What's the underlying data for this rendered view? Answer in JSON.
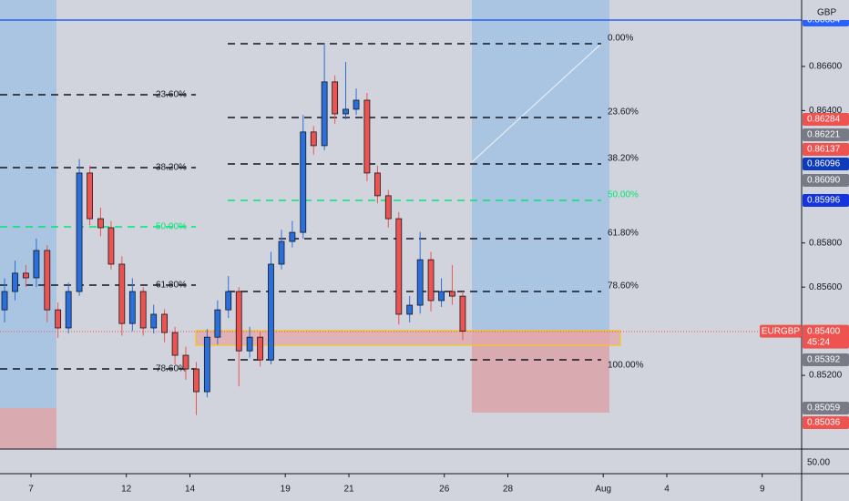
{
  "chart_data": {
    "type": "candlestick",
    "currency": "GBP",
    "symbol": "EURGBP",
    "last_price_label": "0.85400",
    "countdown": "45:24",
    "indicator_value": "50.00",
    "up_color": "#2a6fdb",
    "down_color": "#ef5350",
    "xlim": [
      -0.974,
      24.24
    ],
    "ylim": [
      0.84866,
      0.86901
    ],
    "xticks": [
      {
        "value": 0,
        "label": "7"
      },
      {
        "value": 3,
        "label": "12"
      },
      {
        "value": 5,
        "label": "14"
      },
      {
        "value": 8,
        "label": "19"
      },
      {
        "value": 10,
        "label": "21"
      },
      {
        "value": 13,
        "label": "26"
      },
      {
        "value": 15,
        "label": "28"
      },
      {
        "value": 18,
        "label": "Aug"
      },
      {
        "value": 20,
        "label": "4"
      },
      {
        "value": 23,
        "label": "9"
      }
    ],
    "yticks": [
      {
        "value": 0.866,
        "label": "0.86600"
      },
      {
        "value": 0.864,
        "label": "0.86400"
      },
      {
        "value": 0.858,
        "label": "0.85800"
      },
      {
        "value": 0.856,
        "label": "0.85600"
      },
      {
        "value": 0.852,
        "label": "0.85200"
      }
    ],
    "price_labels": [
      {
        "text": "0.86684",
        "color": "#2962ff"
      },
      {
        "text": "0.86284",
        "color": "#ef5350"
      },
      {
        "text": "0.86221",
        "color": "#787b86"
      },
      {
        "text": "0.86137",
        "color": "#ef5350"
      },
      {
        "text": "0.86096",
        "color": "#0d3bbd"
      },
      {
        "text": "0.86090",
        "color": "#787b86"
      },
      {
        "text": "0.85996",
        "color": "#1434e0"
      },
      {
        "text": "0.85392",
        "color": "#787b86"
      },
      {
        "text": "0.85059",
        "color": "#787b86"
      },
      {
        "text": "0.85036",
        "color": "#ef5350"
      }
    ],
    "fib_left": [
      "23.60%",
      "38.20%",
      "50.00%",
      "61.80%",
      "78.60%"
    ],
    "fib_right": [
      "0.00%",
      "23.60%",
      "38.20%",
      "50.00%",
      "61.80%",
      "78.60%",
      "100.00%"
    ],
    "x": [
      -0.83,
      -0.5,
      -0.16,
      0.17,
      0.51,
      0.85,
      1.18,
      1.52,
      1.85,
      2.19,
      2.52,
      2.86,
      3.19,
      3.53,
      3.86,
      4.2,
      4.53,
      4.87,
      5.2,
      5.54,
      5.87,
      6.21,
      6.54,
      6.88,
      7.21,
      7.55,
      7.88,
      8.22,
      8.56,
      8.89,
      9.23,
      9.56,
      9.9,
      10.23,
      10.57,
      10.9,
      11.24,
      11.57,
      11.91,
      12.24,
      12.58,
      12.91,
      13.25,
      13.58
    ],
    "open": [
      0.85497,
      0.8558,
      0.85663,
      0.85642,
      0.85766,
      0.85497,
      0.85415,
      0.8558,
      0.86117,
      0.8591,
      0.85869,
      0.85704,
      0.85435,
      0.8558,
      0.85415,
      0.85477,
      0.85394,
      0.85291,
      0.85229,
      0.85126,
      0.85373,
      0.85497,
      0.8558,
      0.85311,
      0.85373,
      0.8527,
      0.85704,
      0.85807,
      0.85848,
      0.86303,
      0.86241,
      0.8653,
      0.86385,
      0.86406,
      0.86447,
      0.86117,
      0.86014,
      0.8591,
      0.85477,
      0.85518,
      0.85724,
      0.85539,
      0.8558,
      0.85559
    ],
    "high": [
      0.8564,
      0.8572,
      0.857,
      0.8582,
      0.8579,
      0.8553,
      0.8562,
      0.8618,
      0.8615,
      0.8596,
      0.859,
      0.8574,
      0.8564,
      0.856,
      0.8552,
      0.855,
      0.8542,
      0.8533,
      0.8526,
      0.8541,
      0.8554,
      0.8565,
      0.856,
      0.8542,
      0.854,
      0.8576,
      0.8586,
      0.859,
      0.8638,
      0.8633,
      0.86707,
      0.8656,
      0.8662,
      0.865,
      0.8648,
      0.8615,
      0.8604,
      0.8594,
      0.8556,
      0.8585,
      0.8576,
      0.8564,
      0.857,
      0.8558
    ],
    "low": [
      0.8544,
      0.8554,
      0.856,
      0.856,
      0.8544,
      0.8537,
      0.8539,
      0.8556,
      0.8588,
      0.8583,
      0.8568,
      0.8538,
      0.854,
      0.8538,
      0.8539,
      0.8535,
      0.8525,
      0.8518,
      0.8502,
      0.851,
      0.8534,
      0.8546,
      0.8515,
      0.8528,
      0.8524,
      0.8525,
      0.8568,
      0.8578,
      0.8582,
      0.862,
      0.8622,
      0.8634,
      0.8636,
      0.8638,
      0.8608,
      0.8598,
      0.8587,
      0.8543,
      0.8544,
      0.8548,
      0.8549,
      0.8551,
      0.8552,
      0.8536
    ],
    "close": [
      0.8558,
      0.85663,
      0.85642,
      0.85766,
      0.85497,
      0.85415,
      0.8558,
      0.86117,
      0.8591,
      0.85869,
      0.85704,
      0.85435,
      0.8558,
      0.85415,
      0.85477,
      0.85394,
      0.85291,
      0.85229,
      0.85126,
      0.85373,
      0.85497,
      0.8558,
      0.85311,
      0.85373,
      0.8527,
      0.85704,
      0.85807,
      0.85848,
      0.86303,
      0.86241,
      0.8653,
      0.86385,
      0.86406,
      0.86447,
      0.86117,
      0.86014,
      0.8591,
      0.85477,
      0.85518,
      0.85724,
      0.85539,
      0.8558,
      0.85559,
      0.854
    ]
  }
}
